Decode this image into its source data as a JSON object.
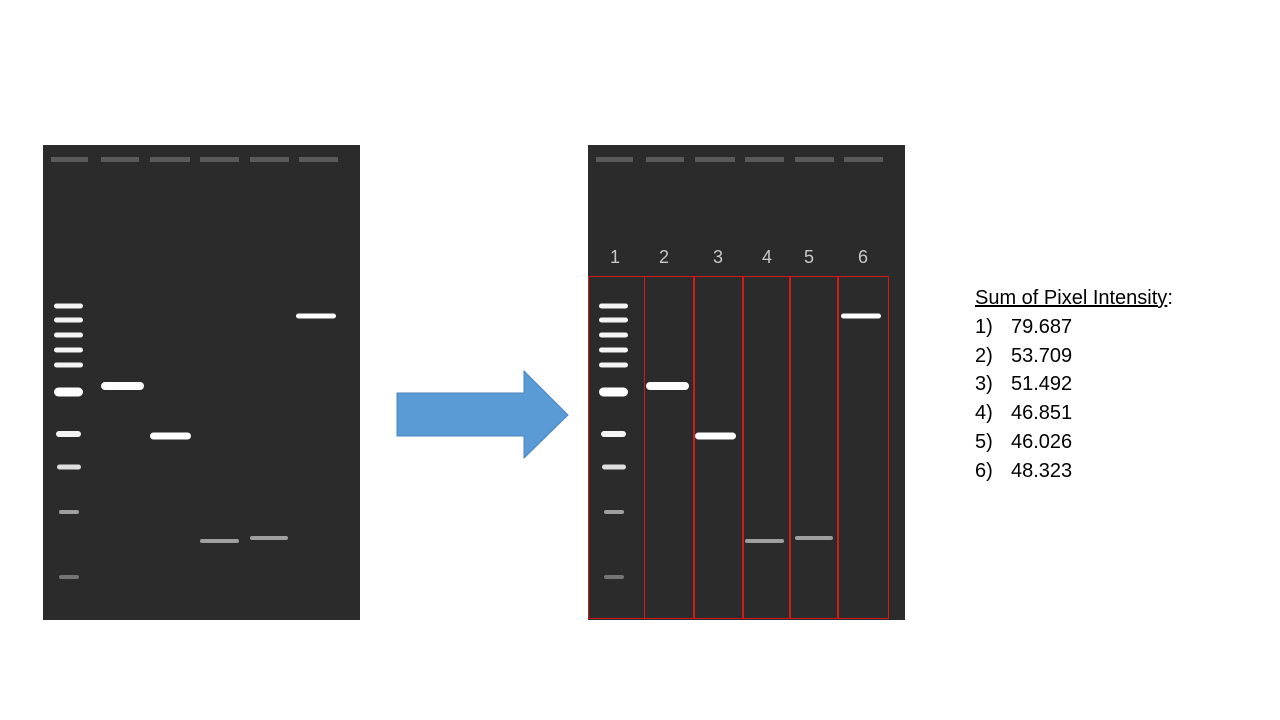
{
  "gel": {
    "background": "#2b2b2b",
    "band_color": "#ffffff"
  },
  "lane_labels": [
    "1",
    "2",
    "3",
    "4",
    "5",
    "6"
  ],
  "arrow": {
    "color": "#5b9bd5",
    "border": "#4a86bf"
  },
  "lane_box_color": "#d11a1a",
  "intensity": {
    "title": "Sum of Pixel Intensity",
    "title_suffix": ":",
    "items": [
      {
        "index": "1)",
        "value": "79.687"
      },
      {
        "index": "2)",
        "value": "53.709"
      },
      {
        "index": "3)",
        "value": "51.492"
      },
      {
        "index": "4)",
        "value": "46.851"
      },
      {
        "index": "5)",
        "value": "46.026"
      },
      {
        "index": "6)",
        "value": "48.323"
      }
    ]
  }
}
